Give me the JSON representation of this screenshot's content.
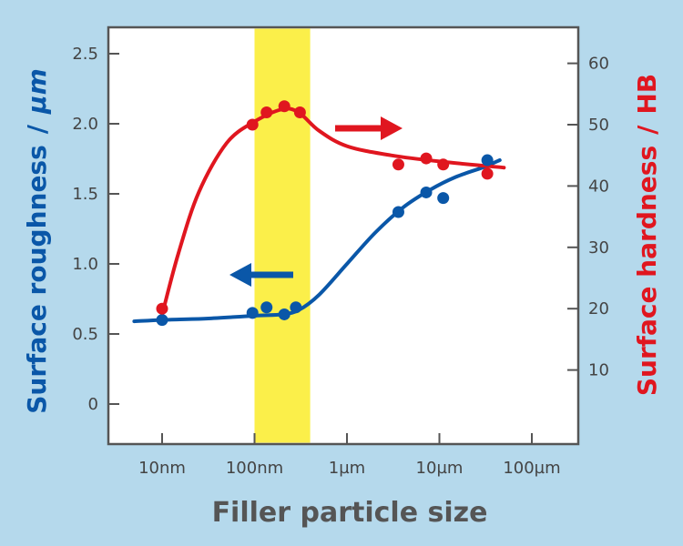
{
  "chart_data": {
    "type": "scatter",
    "xlabel": "Filler particle size",
    "x_scale": "log",
    "x_unit": "nm",
    "x_ticks": [
      {
        "value": 10,
        "label": "10nm"
      },
      {
        "value": 100,
        "label": "100nm"
      },
      {
        "value": 1000,
        "label": "1µm"
      },
      {
        "value": 10000,
        "label": "10µm"
      },
      {
        "value": 100000,
        "label": "100µm"
      }
    ],
    "y_left": {
      "label_main": "Surface roughness",
      "label_sep": "/",
      "label_unit": "µm",
      "ticks": [
        "0",
        "0.5",
        "1.0",
        "1.5",
        "2.0",
        "2.5"
      ]
    },
    "y_right": {
      "label_main": "Surface hardness",
      "label_sep": "/",
      "label_unit": "HB",
      "ticks": [
        "10",
        "20",
        "30",
        "40",
        "50",
        "60"
      ]
    },
    "highlight_band_x": [
      100,
      400
    ],
    "highlight_color": "#fbef4a",
    "series": [
      {
        "axis": "left",
        "color": "#0a57a8",
        "points": [
          {
            "x": 10,
            "y": 0.6
          },
          {
            "x": 95,
            "y": 0.65
          },
          {
            "x": 135,
            "y": 0.69
          },
          {
            "x": 210,
            "y": 0.64
          },
          {
            "x": 280,
            "y": 0.69
          },
          {
            "x": 3600,
            "y": 1.37
          },
          {
            "x": 7200,
            "y": 1.51
          },
          {
            "x": 11000,
            "y": 1.47
          },
          {
            "x": 33000,
            "y": 1.74
          }
        ],
        "curve": [
          {
            "x": 5,
            "y": 0.59
          },
          {
            "x": 10,
            "y": 0.6
          },
          {
            "x": 30,
            "y": 0.61
          },
          {
            "x": 100,
            "y": 0.63
          },
          {
            "x": 200,
            "y": 0.64
          },
          {
            "x": 300,
            "y": 0.67
          },
          {
            "x": 500,
            "y": 0.78
          },
          {
            "x": 1000,
            "y": 1.0
          },
          {
            "x": 2000,
            "y": 1.22
          },
          {
            "x": 4000,
            "y": 1.4
          },
          {
            "x": 8000,
            "y": 1.53
          },
          {
            "x": 15000,
            "y": 1.62
          },
          {
            "x": 30000,
            "y": 1.69
          },
          {
            "x": 45000,
            "y": 1.74
          }
        ]
      },
      {
        "axis": "right",
        "color": "#e0161f",
        "points": [
          {
            "x": 10,
            "y": 20
          },
          {
            "x": 95,
            "y": 50
          },
          {
            "x": 135,
            "y": 52
          },
          {
            "x": 210,
            "y": 53
          },
          {
            "x": 310,
            "y": 52
          },
          {
            "x": 3600,
            "y": 43.5
          },
          {
            "x": 7200,
            "y": 44.5
          },
          {
            "x": 11000,
            "y": 43.5
          },
          {
            "x": 33000,
            "y": 42
          }
        ],
        "curve": [
          {
            "x": 10,
            "y": 19
          },
          {
            "x": 15,
            "y": 29
          },
          {
            "x": 25,
            "y": 39
          },
          {
            "x": 50,
            "y": 47
          },
          {
            "x": 100,
            "y": 50.5
          },
          {
            "x": 200,
            "y": 52.5
          },
          {
            "x": 300,
            "y": 52
          },
          {
            "x": 500,
            "y": 49
          },
          {
            "x": 1000,
            "y": 46.5
          },
          {
            "x": 3000,
            "y": 45
          },
          {
            "x": 10000,
            "y": 44
          },
          {
            "x": 50000,
            "y": 43
          }
        ]
      }
    ]
  }
}
